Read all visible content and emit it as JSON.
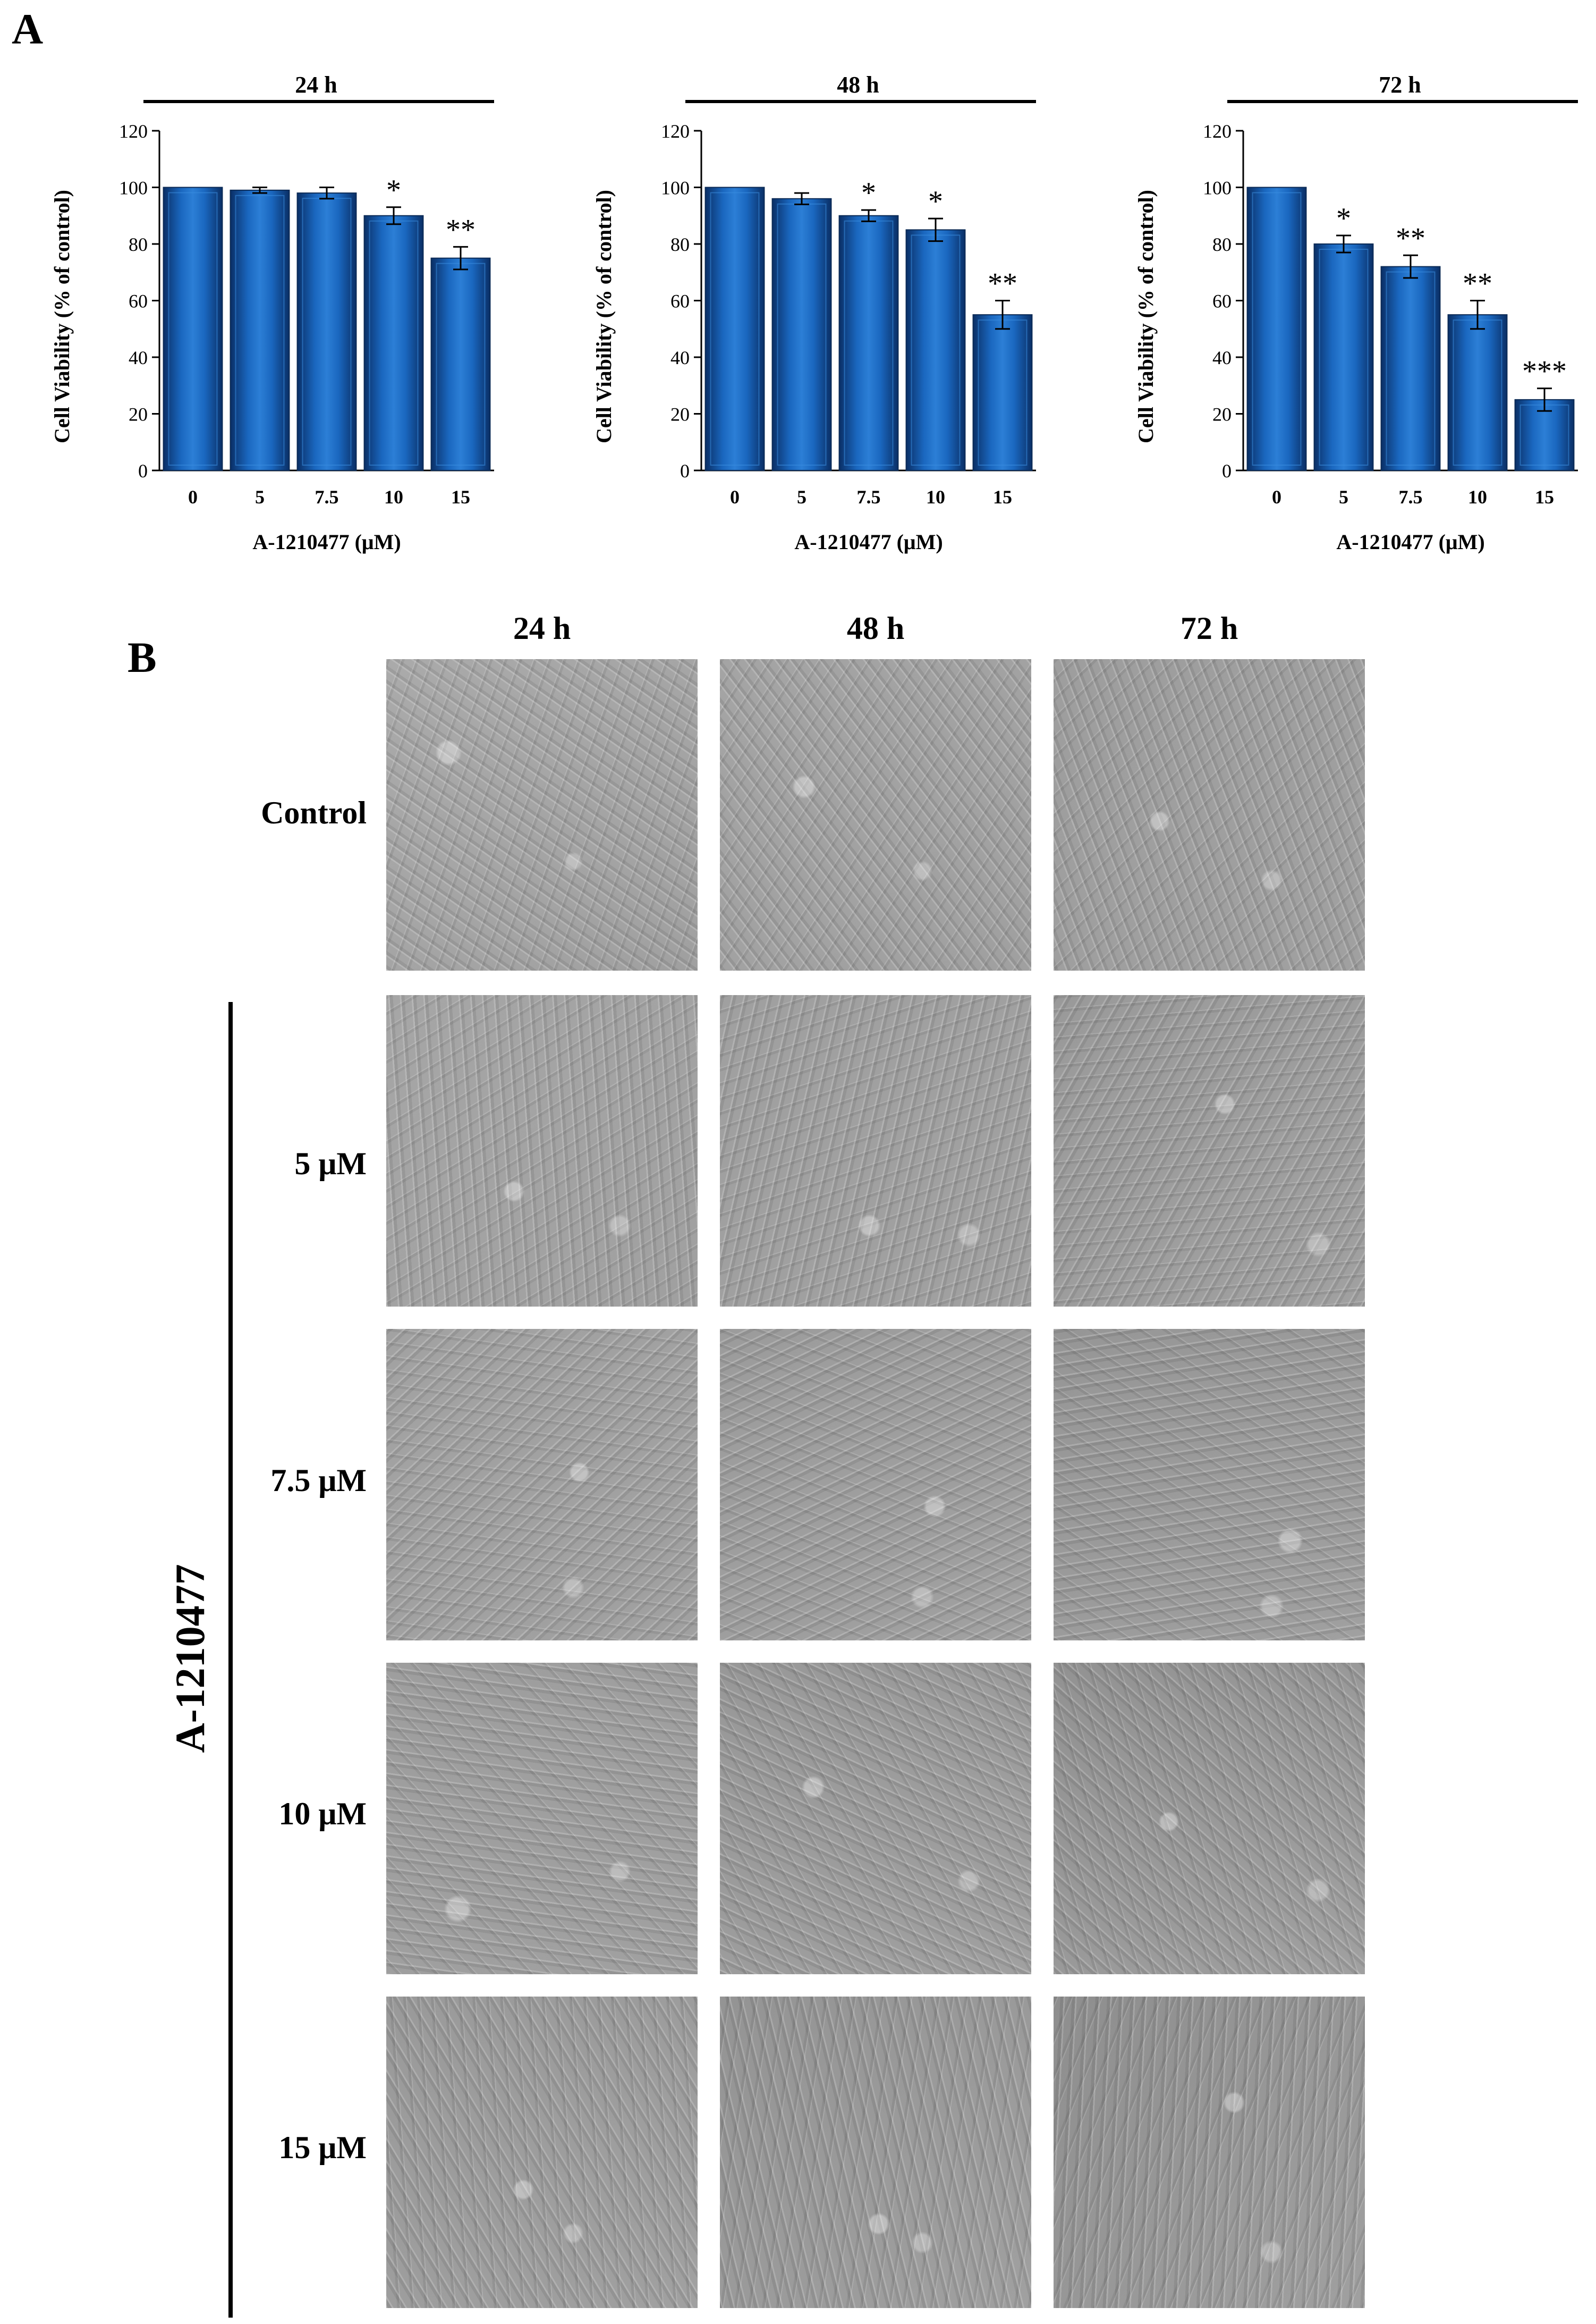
{
  "panel_a_label": "A",
  "panel_b_label": "B",
  "chart_data": [
    {
      "type": "bar",
      "title": "24 h",
      "categories": [
        "0",
        "5",
        "7.5",
        "10",
        "15"
      ],
      "values": [
        100,
        99,
        98,
        90,
        75
      ],
      "errors": [
        0,
        1,
        2,
        3,
        4
      ],
      "significance": [
        "",
        "",
        "",
        "*",
        "**"
      ],
      "xlabel": "A-1210477 (μM)",
      "ylabel": "Cell Viability (% of control)",
      "ylim": [
        0,
        120
      ],
      "yticks": [
        0,
        20,
        40,
        60,
        80,
        100,
        120
      ],
      "grid": false,
      "bar_color": "#1763b5"
    },
    {
      "type": "bar",
      "title": "48 h",
      "categories": [
        "0",
        "5",
        "7.5",
        "10",
        "15"
      ],
      "values": [
        100,
        96,
        90,
        85,
        55
      ],
      "errors": [
        0,
        2,
        2,
        4,
        5
      ],
      "significance": [
        "",
        "",
        "*",
        "*",
        "**"
      ],
      "xlabel": "A-1210477 (μM)",
      "ylabel": "Cell Viability (% of control)",
      "ylim": [
        0,
        120
      ],
      "yticks": [
        0,
        20,
        40,
        60,
        80,
        100,
        120
      ],
      "grid": false,
      "bar_color": "#1763b5"
    },
    {
      "type": "bar",
      "title": "72 h",
      "categories": [
        "0",
        "5",
        "7.5",
        "10",
        "15"
      ],
      "values": [
        100,
        80,
        72,
        55,
        25
      ],
      "errors": [
        0,
        3,
        4,
        5,
        4
      ],
      "significance": [
        "",
        "*",
        "**",
        "**",
        "***"
      ],
      "xlabel": "A-1210477 (μM)",
      "ylabel": "Cell Viability (% of control)",
      "ylim": [
        0,
        120
      ],
      "yticks": [
        0,
        20,
        40,
        60,
        80,
        100,
        120
      ],
      "grid": false,
      "bar_color": "#1763b5"
    }
  ],
  "panel_b": {
    "columns": [
      "24 h",
      "48 h",
      "72 h"
    ],
    "rows": [
      "Control",
      "5 μM",
      "7.5 μM",
      "10 μM",
      "15 μM"
    ],
    "group_label": "A-1210477",
    "image_tone": "#a0a0a0"
  }
}
